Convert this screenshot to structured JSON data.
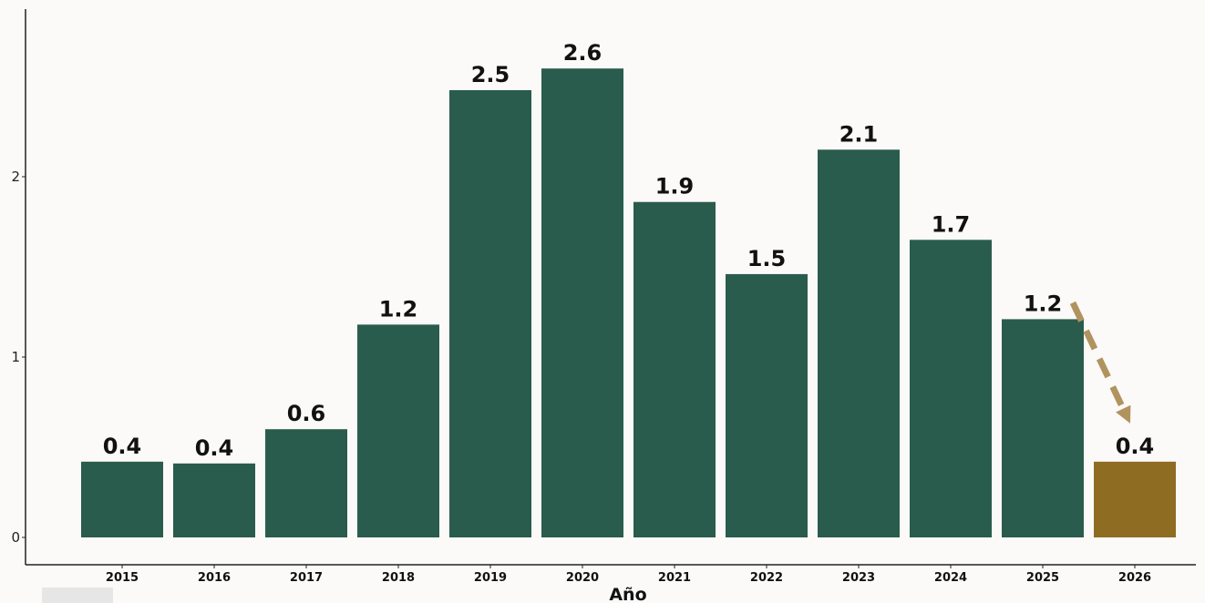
{
  "chart_data": {
    "type": "bar",
    "title": "",
    "xlabel": "Año",
    "ylabel": "",
    "categories": [
      "2015",
      "2016",
      "2017",
      "2018",
      "2019",
      "2020",
      "2021",
      "2022",
      "2023",
      "2024",
      "2025",
      "2026"
    ],
    "values": [
      0.42,
      0.41,
      0.6,
      1.18,
      2.48,
      2.6,
      1.86,
      1.46,
      2.15,
      1.65,
      1.21,
      0.42
    ],
    "data_labels": [
      "0.4",
      "0.4",
      "0.6",
      "1.2",
      "2.5",
      "2.6",
      "1.9",
      "1.5",
      "2.1",
      "1.7",
      "1.2",
      "0.4"
    ],
    "bar_colors": [
      "#2a5c4d",
      "#2a5c4d",
      "#2a5c4d",
      "#2a5c4d",
      "#2a5c4d",
      "#2a5c4d",
      "#2a5c4d",
      "#2a5c4d",
      "#2a5c4d",
      "#2a5c4d",
      "#2a5c4d",
      "#8e6d22"
    ],
    "yticks": [
      0,
      1,
      2
    ],
    "ylim": [
      0,
      2.9
    ],
    "grid": false,
    "legend": "none",
    "annotation": {
      "type": "dashed-arrow",
      "from": "2025",
      "to": "2026",
      "color": "#b1935f"
    }
  }
}
